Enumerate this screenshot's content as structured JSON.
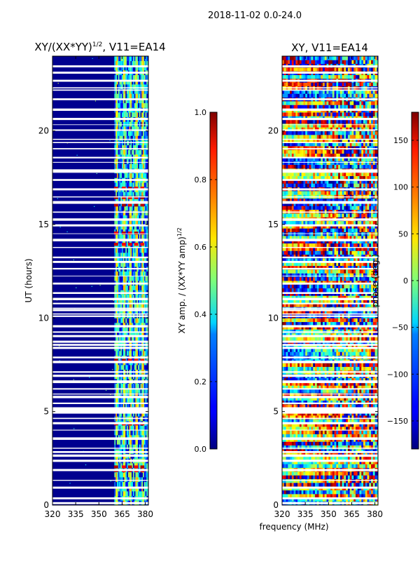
{
  "figure": {
    "suptitle": "2018-11-02 0.0-24.0",
    "xlabel": "frequency (MHz)"
  },
  "chart_data": [
    {
      "type": "heatmap",
      "title": "XY/(XX*YY)",
      "title_sup": "1/2",
      "title_tail": ", V11=EA14",
      "ylabel": "UT (hours)",
      "xlim": [
        320,
        382
      ],
      "ylim": [
        0,
        24
      ],
      "xticks": [
        320,
        335,
        350,
        365,
        380
      ],
      "yticks": [
        0,
        5,
        10,
        15,
        20
      ],
      "active_band_mhz": [
        360,
        381
      ],
      "strong_columns_mhz": [
        361,
        366,
        370,
        374,
        378
      ],
      "hot_rows_hours": [
        1.8,
        2.0,
        4.3,
        7.7,
        13.9,
        14.5,
        16.0,
        16.4,
        16.9
      ],
      "colorbar": {
        "label": "XY amp. / (XX*YY amp)",
        "label_sup": "1/2",
        "range": [
          0.0,
          1.0
        ],
        "ticks": [
          "0.0",
          "0.2",
          "0.4",
          "0.6",
          "0.8",
          "1.0"
        ],
        "tick_values": [
          0,
          0.2,
          0.4,
          0.6,
          0.8,
          1.0
        ]
      }
    },
    {
      "type": "heatmap",
      "title": "XY, V11=EA14",
      "xlim": [
        320,
        382
      ],
      "ylim": [
        0,
        24
      ],
      "xticks": [
        320,
        335,
        350,
        365,
        380
      ],
      "yticks": [
        0,
        5,
        10,
        15,
        20
      ],
      "colorbar": {
        "label": "phase (deg.)",
        "range": [
          -180,
          180
        ],
        "ticks": [
          "150",
          "100",
          "50",
          "0",
          "−50",
          "−100",
          "−150"
        ],
        "tick_values": [
          150,
          100,
          50,
          0,
          -50,
          -100,
          -150
        ]
      }
    }
  ]
}
